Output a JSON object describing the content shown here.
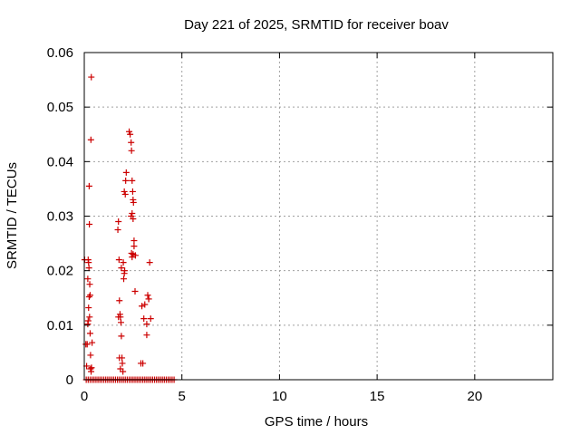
{
  "chart_data": {
    "type": "scatter",
    "title": "Day 221 of 2025, SRMTID for receiver boav",
    "xlabel": "GPS time / hours",
    "ylabel": "SRMTID / TECUs",
    "xlim": [
      0,
      24
    ],
    "ylim": [
      0,
      0.06
    ],
    "xticks": [
      0,
      5,
      10,
      15,
      20
    ],
    "xtick_labels": [
      "0",
      "5",
      "10",
      "15",
      "20"
    ],
    "yticks": [
      0,
      0.01,
      0.02,
      0.03,
      0.04,
      0.05,
      0.06
    ],
    "ytick_labels": [
      "0",
      "0.01",
      "0.02",
      "0.03",
      "0.04",
      "0.05",
      "0.06"
    ],
    "grid": true,
    "marker": "+",
    "color": "#cc0000",
    "series": [
      {
        "name": "SRMTID",
        "x": [
          0.02,
          0.08,
          0.12,
          0.15,
          0.18,
          0.2,
          0.22,
          0.24,
          0.25,
          0.26,
          0.28,
          0.3,
          0.32,
          0.34,
          0.36,
          0.18,
          0.2,
          0.22,
          0.25,
          0.27,
          0.3,
          0.32,
          0.35,
          0.37,
          0.4,
          1.72,
          1.75,
          1.78,
          1.8,
          1.83,
          1.85,
          1.88,
          1.9,
          1.93,
          1.95,
          1.98,
          2.0,
          2.02,
          2.05,
          2.07,
          2.1,
          2.12,
          2.15,
          2.05,
          1.75,
          1.8,
          1.85,
          1.9,
          2.3,
          2.35,
          2.4,
          2.42,
          2.45,
          2.48,
          2.5,
          2.52,
          2.45,
          2.4,
          2.5,
          2.55,
          2.55,
          2.5,
          2.45,
          2.42,
          2.6,
          2.62,
          2.9,
          2.95,
          3.0,
          3.05,
          3.1,
          3.2,
          3.25,
          3.3,
          3.35,
          3.4,
          3.3,
          3.2,
          0.1,
          0.2,
          0.3,
          0.4,
          0.5,
          0.6,
          0.7,
          0.8,
          0.9,
          1.0,
          1.1,
          1.2,
          1.3,
          1.4,
          1.5,
          1.6,
          1.7,
          1.8,
          1.9,
          2.0,
          2.1,
          2.2,
          2.3,
          2.4,
          2.5,
          2.6,
          2.7,
          2.8,
          2.9,
          3.0,
          3.1,
          3.2,
          3.3,
          3.4,
          3.5,
          3.6,
          3.7,
          3.8,
          3.9,
          4.0,
          4.1,
          4.2,
          4.3,
          4.4,
          4.5,
          4.6
        ],
        "y": [
          0.022,
          0.0065,
          0.0025,
          0.0065,
          0.0185,
          0.022,
          0.0215,
          0.0205,
          0.0355,
          0.0285,
          0.0175,
          0.0155,
          0.0045,
          0.044,
          0.0555,
          0.0102,
          0.0108,
          0.0132,
          0.0152,
          0.0115,
          0.0085,
          0.002,
          0.0015,
          0.0022,
          0.0068,
          0.0275,
          0.029,
          0.022,
          0.0145,
          0.012,
          0.0115,
          0.0105,
          0.008,
          0.004,
          0.003,
          0.0015,
          0.0215,
          0.0185,
          0.0195,
          0.02,
          0.034,
          0.0365,
          0.038,
          0.0345,
          0.0115,
          0.004,
          0.002,
          0.0205,
          0.0455,
          0.045,
          0.0435,
          0.042,
          0.0365,
          0.0345,
          0.033,
          0.0325,
          0.0305,
          0.03,
          0.0295,
          0.0255,
          0.0245,
          0.023,
          0.0225,
          0.0232,
          0.0162,
          0.0228,
          0.003,
          0.0135,
          0.003,
          0.0112,
          0.0138,
          0.0082,
          0.0155,
          0.0148,
          0.0215,
          0.0112,
          0.0148,
          0.0102,
          0,
          0,
          0,
          0,
          0,
          0,
          0,
          0,
          0,
          0,
          0,
          0,
          0,
          0,
          0,
          0,
          0,
          0,
          0,
          0,
          0,
          0,
          0,
          0,
          0,
          0,
          0,
          0,
          0,
          0,
          0,
          0,
          0,
          0,
          0,
          0,
          0,
          0,
          0,
          0,
          0,
          0,
          0,
          0,
          0,
          0
        ]
      }
    ]
  }
}
